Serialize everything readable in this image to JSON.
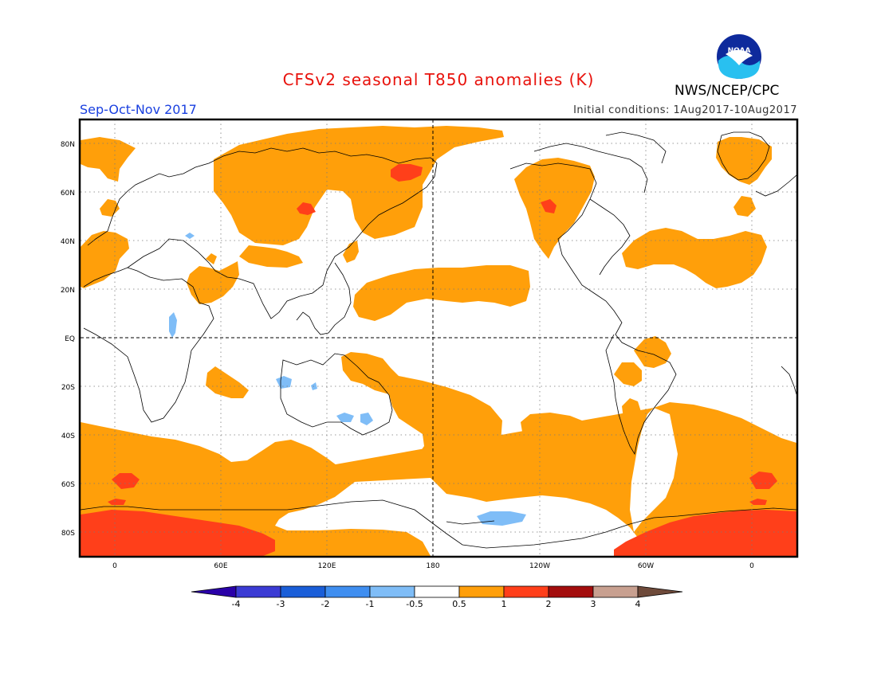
{
  "title": "CFSv2 seasonal T850 anomalies (K)",
  "season": "Sep-Oct-Nov 2017",
  "init_conditions": "Initial conditions: 1Aug2017-10Aug2017",
  "agency": "NWS/NCEP/CPC",
  "logo_text": "NOAA",
  "colors": {
    "title": "#e8120c",
    "season": "#1a40e0",
    "warm_1": "#ff9f0a",
    "warm_2": "#ff3f1a",
    "cool_1": "#7fbdf7",
    "land_outline": "#000000"
  },
  "lat_labels": [
    "80N",
    "60N",
    "40N",
    "20N",
    "EQ",
    "20S",
    "40S",
    "60S",
    "80S"
  ],
  "lon_labels": [
    "0",
    "60E",
    "120E",
    "180",
    "120W",
    "60W",
    "0"
  ],
  "colorbar": {
    "bins": [
      {
        "color": "#2a00a8",
        "type": "arrow-left"
      },
      {
        "color": "#3b3bd4"
      },
      {
        "color": "#1a5ed8"
      },
      {
        "color": "#3f8ef0"
      },
      {
        "color": "#7fbdf7"
      },
      {
        "color": "#ffffff"
      },
      {
        "color": "#ff9f0a"
      },
      {
        "color": "#ff3f1a"
      },
      {
        "color": "#a30d0d"
      },
      {
        "color": "#c8a090"
      },
      {
        "color": "#6e4a3a",
        "type": "arrow-right"
      }
    ],
    "labels": [
      "-4",
      "-3",
      "-2",
      "-1",
      "-0.5",
      "0.5",
      "1",
      "2",
      "3",
      "4"
    ]
  }
}
